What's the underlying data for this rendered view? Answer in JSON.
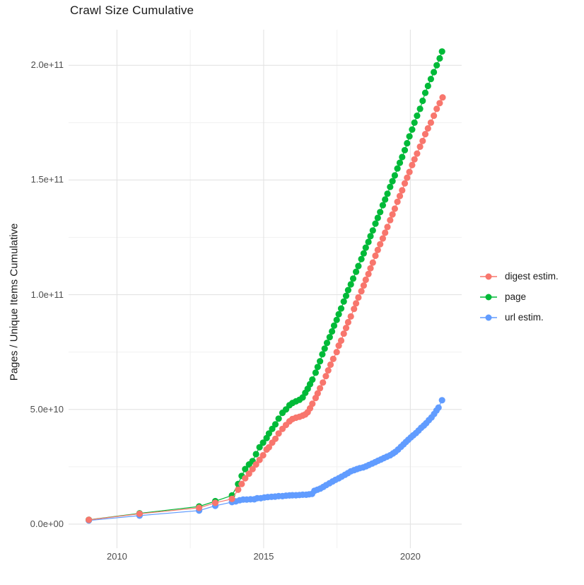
{
  "title": "Crawl Size Cumulative",
  "y_axis_label": "Pages / Unique Items Cumulative",
  "legend": {
    "items": [
      {
        "label": "digest estim.",
        "color": "#F8766D"
      },
      {
        "label": "page",
        "color": "#00BA38"
      },
      {
        "label": "url estim.",
        "color": "#619CFF"
      }
    ]
  },
  "chart_data": {
    "type": "scatter",
    "title": "Crawl Size Cumulative",
    "xlabel": "",
    "ylabel": "Pages / Unique Items Cumulative",
    "grid": "on",
    "legend_position": "right",
    "xlim": [
      2008.35,
      2021.75
    ],
    "ylim": [
      -10500000000.0,
      215500000000.0
    ],
    "x_ticks": [
      {
        "value": 2010,
        "label": "2010"
      },
      {
        "value": 2015,
        "label": "2015"
      },
      {
        "value": 2020,
        "label": "2020"
      }
    ],
    "x_minor": [
      2012.5,
      2017.5
    ],
    "y_ticks": [
      {
        "value": 0.0,
        "label": "0.0e+00"
      },
      {
        "value": 50000000000.0,
        "label": "5.0e+10"
      },
      {
        "value": 100000000000.0,
        "label": "1.0e+11"
      },
      {
        "value": 150000000000.0,
        "label": "1.5e+11"
      },
      {
        "value": 200000000000.0,
        "label": "2.0e+11"
      }
    ],
    "y_minor": [
      25000000000.0,
      75000000000.0,
      125000000000.0,
      175000000000.0
    ],
    "series": [
      {
        "name": "digest estim.",
        "color": "#F8766D",
        "points": [
          [
            2009.04,
            1850000000.0
          ],
          [
            2010.77,
            4500000000.0
          ],
          [
            2012.8,
            7100000000.0
          ],
          [
            2013.35,
            9300000000.0
          ],
          [
            2013.92,
            11000000000.0
          ],
          [
            2014.13,
            15000000000.0
          ],
          [
            2014.25,
            17500000000.0
          ],
          [
            2014.37,
            20000000000.0
          ],
          [
            2014.5,
            22000000000.0
          ],
          [
            2014.62,
            24000000000.0
          ],
          [
            2014.74,
            26000000000.0
          ],
          [
            2014.86,
            28000000000.0
          ],
          [
            2014.98,
            30000000000.0
          ],
          [
            2015.1,
            32500000000.0
          ],
          [
            2015.18,
            33500000000.0
          ],
          [
            2015.29,
            35500000000.0
          ],
          [
            2015.4,
            37200000000.0
          ],
          [
            2015.51,
            39500000000.0
          ],
          [
            2015.64,
            41500000000.0
          ],
          [
            2015.76,
            43200000000.0
          ],
          [
            2015.88,
            44800000000.0
          ],
          [
            2015.98,
            45800000000.0
          ],
          [
            2016.1,
            46400000000.0
          ],
          [
            2016.22,
            46800000000.0
          ],
          [
            2016.33,
            47300000000.0
          ],
          [
            2016.42,
            47800000000.0
          ],
          [
            2016.5,
            48800000000.0
          ],
          [
            2016.58,
            50500000000.0
          ],
          [
            2016.66,
            52500000000.0
          ],
          [
            2016.77,
            55000000000.0
          ],
          [
            2016.84,
            57000000000.0
          ],
          [
            2016.92,
            59200000000.0
          ],
          [
            2017.02,
            61700000000.0
          ],
          [
            2017.12,
            64500000000.0
          ],
          [
            2017.2,
            67000000000.0
          ],
          [
            2017.28,
            69500000000.0
          ],
          [
            2017.37,
            72000000000.0
          ],
          [
            2017.49,
            75000000000.0
          ],
          [
            2017.56,
            77800000000.0
          ],
          [
            2017.64,
            80000000000.0
          ],
          [
            2017.73,
            83000000000.0
          ],
          [
            2017.81,
            85500000000.0
          ],
          [
            2017.88,
            88000000000.0
          ],
          [
            2017.97,
            90500000000.0
          ],
          [
            2018.08,
            93800000000.0
          ],
          [
            2018.15,
            96200000000.0
          ],
          [
            2018.23,
            98800000000.0
          ],
          [
            2018.33,
            101500000000.0
          ],
          [
            2018.41,
            104000000000.0
          ],
          [
            2018.48,
            106500000000.0
          ],
          [
            2018.57,
            109000000000.0
          ],
          [
            2018.64,
            111500000000.0
          ],
          [
            2018.72,
            114000000000.0
          ],
          [
            2018.81,
            117000000000.0
          ],
          [
            2018.89,
            119500000000.0
          ],
          [
            2018.97,
            122000000000.0
          ],
          [
            2019.06,
            124500000000.0
          ],
          [
            2019.14,
            127000000000.0
          ],
          [
            2019.22,
            129500000000.0
          ],
          [
            2019.31,
            132500000000.0
          ],
          [
            2019.39,
            135000000000.0
          ],
          [
            2019.47,
            137500000000.0
          ],
          [
            2019.56,
            140500000000.0
          ],
          [
            2019.64,
            143000000000.0
          ],
          [
            2019.72,
            145500000000.0
          ],
          [
            2019.81,
            148500000000.0
          ],
          [
            2019.89,
            151000000000.0
          ],
          [
            2019.97,
            153500000000.0
          ],
          [
            2020.06,
            156500000000.0
          ],
          [
            2020.14,
            159000000000.0
          ],
          [
            2020.23,
            161500000000.0
          ],
          [
            2020.33,
            164500000000.0
          ],
          [
            2020.42,
            167000000000.0
          ],
          [
            2020.51,
            170000000000.0
          ],
          [
            2020.6,
            172500000000.0
          ],
          [
            2020.7,
            175000000000.0
          ],
          [
            2020.8,
            178000000000.0
          ],
          [
            2020.9,
            181000000000.0
          ],
          [
            2021.0,
            183500000000.0
          ],
          [
            2021.1,
            186000000000.0
          ]
        ]
      },
      {
        "name": "page",
        "color": "#00BA38",
        "points": [
          [
            2009.04,
            1900000000.0
          ],
          [
            2010.77,
            4700000000.0
          ],
          [
            2012.8,
            7700000000.0
          ],
          [
            2013.35,
            10000000000.0
          ],
          [
            2013.92,
            12500000000.0
          ],
          [
            2014.13,
            17500000000.0
          ],
          [
            2014.25,
            21000000000.0
          ],
          [
            2014.37,
            24000000000.0
          ],
          [
            2014.5,
            26000000000.0
          ],
          [
            2014.62,
            27500000000.0
          ],
          [
            2014.74,
            30500000000.0
          ],
          [
            2014.86,
            33500000000.0
          ],
          [
            2014.98,
            35500000000.0
          ],
          [
            2015.1,
            37500000000.0
          ],
          [
            2015.18,
            39500000000.0
          ],
          [
            2015.29,
            41500000000.0
          ],
          [
            2015.4,
            43500000000.0
          ],
          [
            2015.51,
            46000000000.0
          ],
          [
            2015.64,
            48500000000.0
          ],
          [
            2015.76,
            50000000000.0
          ],
          [
            2015.88,
            51800000000.0
          ],
          [
            2015.98,
            52800000000.0
          ],
          [
            2016.1,
            53500000000.0
          ],
          [
            2016.22,
            54200000000.0
          ],
          [
            2016.33,
            55200000000.0
          ],
          [
            2016.42,
            57200000000.0
          ],
          [
            2016.5,
            59000000000.0
          ],
          [
            2016.58,
            61000000000.0
          ],
          [
            2016.66,
            63000000000.0
          ],
          [
            2016.77,
            66000000000.0
          ],
          [
            2016.84,
            68500000000.0
          ],
          [
            2016.92,
            71000000000.0
          ],
          [
            2017.0,
            74000000000.0
          ],
          [
            2017.08,
            76500000000.0
          ],
          [
            2017.16,
            79000000000.0
          ],
          [
            2017.25,
            81500000000.0
          ],
          [
            2017.33,
            84000000000.0
          ],
          [
            2017.4,
            86500000000.0
          ],
          [
            2017.49,
            89000000000.0
          ],
          [
            2017.56,
            91500000000.0
          ],
          [
            2017.64,
            94000000000.0
          ],
          [
            2017.73,
            97000000000.0
          ],
          [
            2017.81,
            99500000000.0
          ],
          [
            2017.88,
            102000000000.0
          ],
          [
            2017.97,
            104500000000.0
          ],
          [
            2018.05,
            107000000000.0
          ],
          [
            2018.15,
            110000000000.0
          ],
          [
            2018.23,
            112500000000.0
          ],
          [
            2018.33,
            115500000000.0
          ],
          [
            2018.41,
            118000000000.0
          ],
          [
            2018.48,
            120500000000.0
          ],
          [
            2018.57,
            123000000000.0
          ],
          [
            2018.64,
            125500000000.0
          ],
          [
            2018.72,
            128000000000.0
          ],
          [
            2018.81,
            131000000000.0
          ],
          [
            2018.89,
            133500000000.0
          ],
          [
            2018.97,
            136000000000.0
          ],
          [
            2019.06,
            139000000000.0
          ],
          [
            2019.14,
            141500000000.0
          ],
          [
            2019.22,
            144000000000.0
          ],
          [
            2019.31,
            147000000000.0
          ],
          [
            2019.39,
            149500000000.0
          ],
          [
            2019.47,
            152000000000.0
          ],
          [
            2019.56,
            155000000000.0
          ],
          [
            2019.64,
            157500000000.0
          ],
          [
            2019.72,
            160000000000.0
          ],
          [
            2019.81,
            163000000000.0
          ],
          [
            2019.89,
            166000000000.0
          ],
          [
            2019.97,
            169000000000.0
          ],
          [
            2020.06,
            172000000000.0
          ],
          [
            2020.14,
            175000000000.0
          ],
          [
            2020.23,
            178000000000.0
          ],
          [
            2020.33,
            181000000000.0
          ],
          [
            2020.42,
            184500000000.0
          ],
          [
            2020.51,
            188000000000.0
          ],
          [
            2020.6,
            191000000000.0
          ],
          [
            2020.7,
            194000000000.0
          ],
          [
            2020.8,
            197000000000.0
          ],
          [
            2020.9,
            200000000000.0
          ],
          [
            2021.0,
            203000000000.0
          ],
          [
            2021.08,
            206000000000.0
          ]
        ]
      },
      {
        "name": "url estim.",
        "color": "#619CFF",
        "points": [
          [
            2009.04,
            1600000000.0
          ],
          [
            2010.77,
            3700000000.0
          ],
          [
            2012.8,
            5900000000.0
          ],
          [
            2013.35,
            8000000000.0
          ],
          [
            2013.92,
            9600000000.0
          ],
          [
            2014.05,
            9900000000.0
          ],
          [
            2014.18,
            10400000000.0
          ],
          [
            2014.3,
            10700000000.0
          ],
          [
            2014.42,
            10700000000.0
          ],
          [
            2014.55,
            10800000000.0
          ],
          [
            2014.68,
            10800000000.0
          ],
          [
            2014.78,
            11300000000.0
          ],
          [
            2014.9,
            11300000000.0
          ],
          [
            2015.02,
            11600000000.0
          ],
          [
            2015.14,
            11800000000.0
          ],
          [
            2015.27,
            11900000000.0
          ],
          [
            2015.39,
            12000000000.0
          ],
          [
            2015.51,
            12200000000.0
          ],
          [
            2015.64,
            12200000000.0
          ],
          [
            2015.76,
            12400000000.0
          ],
          [
            2015.88,
            12500000000.0
          ],
          [
            2015.98,
            12600000000.0
          ],
          [
            2016.1,
            12600000000.0
          ],
          [
            2016.22,
            12700000000.0
          ],
          [
            2016.33,
            12800000000.0
          ],
          [
            2016.45,
            12800000000.0
          ],
          [
            2016.55,
            13000000000.0
          ],
          [
            2016.65,
            13200000000.0
          ],
          [
            2016.73,
            14500000000.0
          ],
          [
            2016.83,
            15000000000.0
          ],
          [
            2016.93,
            15500000000.0
          ],
          [
            2017.03,
            16200000000.0
          ],
          [
            2017.13,
            17000000000.0
          ],
          [
            2017.24,
            17800000000.0
          ],
          [
            2017.35,
            18600000000.0
          ],
          [
            2017.45,
            19300000000.0
          ],
          [
            2017.56,
            20000000000.0
          ],
          [
            2017.66,
            20700000000.0
          ],
          [
            2017.77,
            21500000000.0
          ],
          [
            2017.87,
            22200000000.0
          ],
          [
            2017.97,
            23000000000.0
          ],
          [
            2018.08,
            23500000000.0
          ],
          [
            2018.18,
            24000000000.0
          ],
          [
            2018.28,
            24400000000.0
          ],
          [
            2018.39,
            24700000000.0
          ],
          [
            2018.49,
            25200000000.0
          ],
          [
            2018.59,
            25800000000.0
          ],
          [
            2018.7,
            26400000000.0
          ],
          [
            2018.8,
            27000000000.0
          ],
          [
            2018.9,
            27600000000.0
          ],
          [
            2019.0,
            28200000000.0
          ],
          [
            2019.1,
            28800000000.0
          ],
          [
            2019.2,
            29400000000.0
          ],
          [
            2019.31,
            30000000000.0
          ],
          [
            2019.41,
            30800000000.0
          ],
          [
            2019.49,
            31500000000.0
          ],
          [
            2019.58,
            32500000000.0
          ],
          [
            2019.68,
            33700000000.0
          ],
          [
            2019.77,
            34800000000.0
          ],
          [
            2019.85,
            35800000000.0
          ],
          [
            2019.93,
            36800000000.0
          ],
          [
            2020.02,
            37800000000.0
          ],
          [
            2020.1,
            38700000000.0
          ],
          [
            2020.19,
            39700000000.0
          ],
          [
            2020.28,
            40800000000.0
          ],
          [
            2020.37,
            42000000000.0
          ],
          [
            2020.46,
            43000000000.0
          ],
          [
            2020.54,
            44000000000.0
          ],
          [
            2020.63,
            45300000000.0
          ],
          [
            2020.72,
            46500000000.0
          ],
          [
            2020.81,
            48000000000.0
          ],
          [
            2020.89,
            49500000000.0
          ],
          [
            2020.96,
            50800000000.0
          ],
          [
            2021.08,
            54000000000.0
          ]
        ]
      }
    ]
  }
}
